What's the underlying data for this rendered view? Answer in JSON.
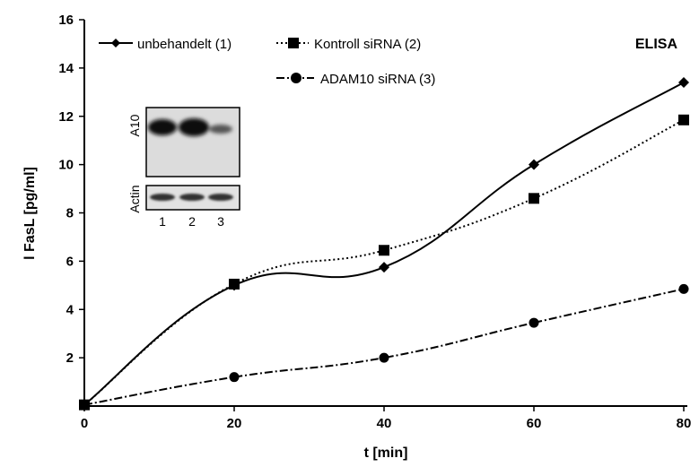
{
  "chart_data": {
    "type": "line",
    "xlabel": "t [min]",
    "ylabel": "l FasL [pg/ml]",
    "xlim": [
      0,
      80
    ],
    "ylim": [
      0,
      16
    ],
    "xticks": [
      "0",
      "20",
      "40",
      "60",
      "80"
    ],
    "yticks": [
      "2",
      "4",
      "6",
      "8",
      "10",
      "12",
      "14",
      "16"
    ],
    "grid": false,
    "legend_position": "top-left",
    "annotation": "ELISA",
    "series": [
      {
        "name": "unbehandelt (1)",
        "marker": "diamond",
        "line": "solid",
        "x": [
          0,
          20,
          40,
          60,
          80
        ],
        "y": [
          0.05,
          5.0,
          5.75,
          10.0,
          13.4
        ]
      },
      {
        "name": "Kontroll siRNA (2)",
        "marker": "square",
        "line": "dotted",
        "x": [
          0,
          20,
          40,
          60,
          80
        ],
        "y": [
          0.05,
          5.05,
          6.45,
          8.6,
          11.85
        ]
      },
      {
        "name": "ADAM10 siRNA (3)",
        "marker": "circle",
        "line": "dashdot",
        "x": [
          0,
          20,
          40,
          60,
          80
        ],
        "y": [
          0.05,
          1.2,
          2.0,
          3.45,
          4.85
        ]
      }
    ],
    "inset_blot": {
      "row_labels": [
        "A10",
        "Actin"
      ],
      "lane_labels": [
        "1",
        "2",
        "3"
      ]
    }
  }
}
